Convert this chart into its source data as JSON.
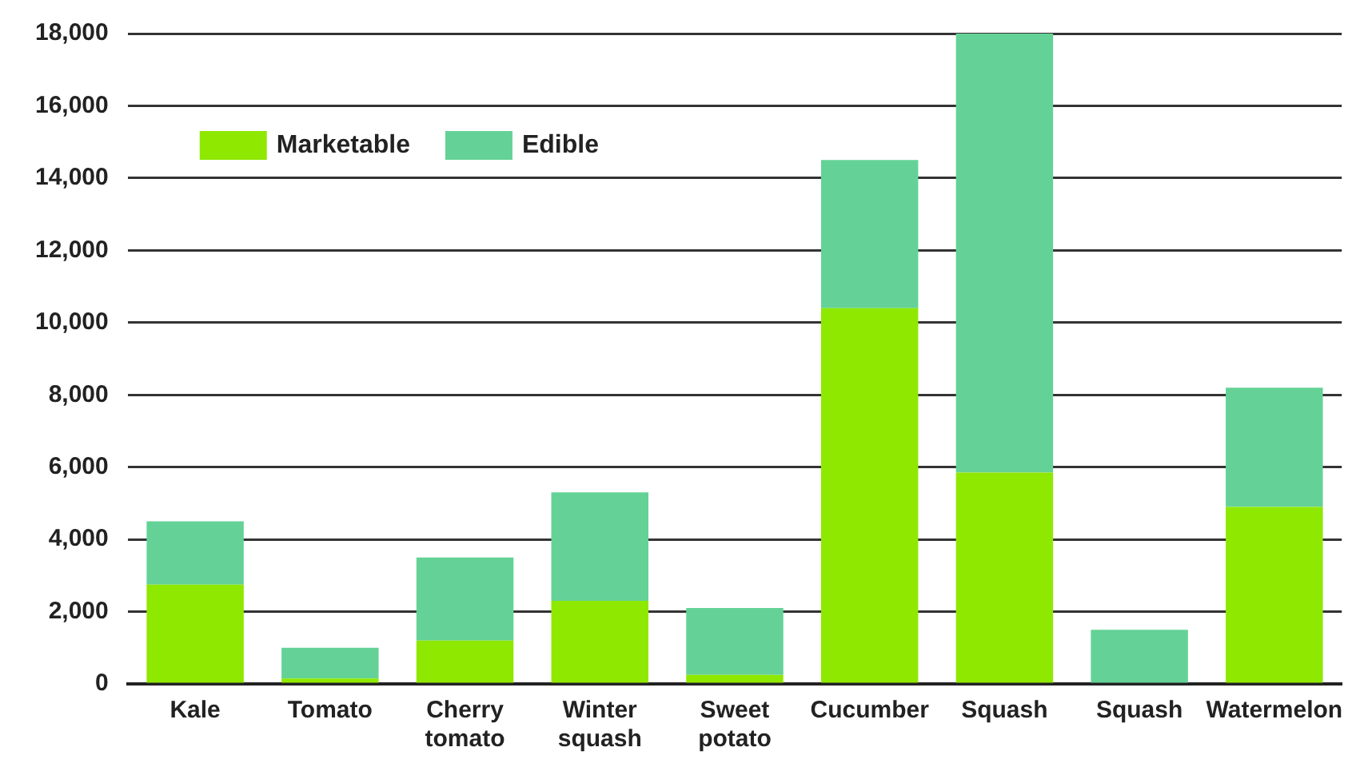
{
  "chart_data": {
    "type": "bar",
    "stacked": true,
    "categories": [
      "Kale",
      "Tomato",
      "Cherry\ntomato",
      "Winter\nsquash",
      "Sweet\npotato",
      "Cucumber",
      "Squash",
      "Squash",
      "Watermelon"
    ],
    "series": [
      {
        "name": "Marketable",
        "color": "#8fe800",
        "values": [
          2750,
          150,
          1200,
          2300,
          250,
          10400,
          5850,
          0,
          4900
        ]
      },
      {
        "name": "Edible",
        "color": "#64d296",
        "values": [
          1750,
          850,
          2300,
          3000,
          1850,
          4100,
          12150,
          1500,
          3300
        ]
      }
    ],
    "ylim": [
      0,
      18000
    ],
    "yticks": [
      {
        "value": 0,
        "label": "0"
      },
      {
        "value": 2000,
        "label": "2,000"
      },
      {
        "value": 4000,
        "label": "4,000"
      },
      {
        "value": 6000,
        "label": "6,000"
      },
      {
        "value": 8000,
        "label": "8,000"
      },
      {
        "value": 10000,
        "label": "10,000"
      },
      {
        "value": 12000,
        "label": "12,000"
      },
      {
        "value": 14000,
        "label": "14,000"
      },
      {
        "value": 16000,
        "label": "16,000"
      },
      {
        "value": 18000,
        "label": "18,000"
      }
    ],
    "grid": "y",
    "legend": "top left"
  }
}
